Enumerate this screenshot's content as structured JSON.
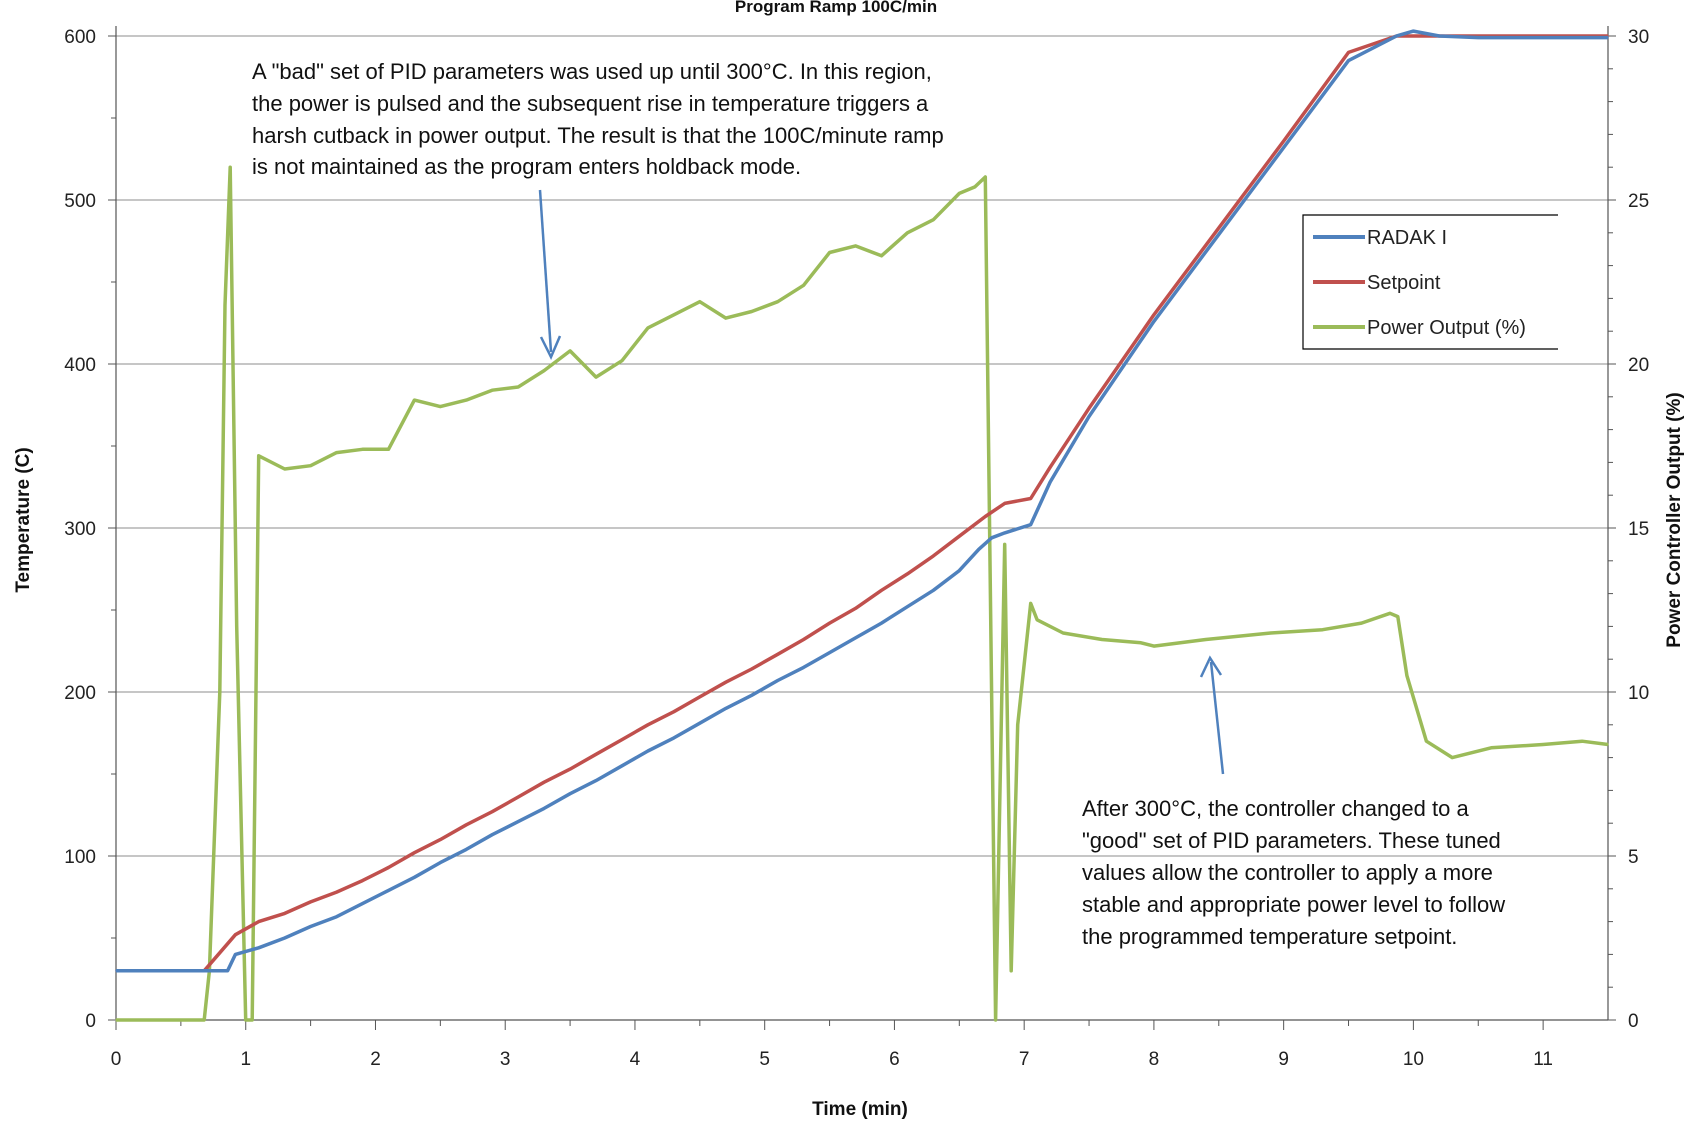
{
  "chart_data": {
    "type": "line",
    "title": "Program Ramp 100C/min",
    "xlabel": "Time (min)",
    "ylabel": "Temperature (C)",
    "y2label": "Power Controller Output (%)",
    "xlim": [
      0,
      11.5
    ],
    "ylim": [
      0,
      600
    ],
    "y2lim": [
      0,
      30
    ],
    "x_ticks": [
      "0",
      "1",
      "2",
      "3",
      "4",
      "5",
      "6",
      "7",
      "8",
      "9",
      "10",
      "11"
    ],
    "y_ticks": [
      "0",
      "100",
      "200",
      "300",
      "400",
      "500",
      "600"
    ],
    "y2_ticks": [
      "0",
      "5",
      "10",
      "15",
      "20",
      "25",
      "30"
    ],
    "grid": "horizontal major gridlines",
    "legend_position": "upper-right",
    "colors": {
      "RADAK I": "#4F81BD",
      "Setpoint": "#C0504D",
      "Power Output (%)": "#9BBB59"
    },
    "series": [
      {
        "name": "RADAK I",
        "axis": "left",
        "x": [
          0,
          0.86,
          0.92,
          1.1,
          1.3,
          1.5,
          1.7,
          1.9,
          2.1,
          2.3,
          2.5,
          2.7,
          2.9,
          3.1,
          3.3,
          3.5,
          3.7,
          3.9,
          4.1,
          4.3,
          4.5,
          4.7,
          4.9,
          5.1,
          5.3,
          5.5,
          5.7,
          5.9,
          6.1,
          6.3,
          6.5,
          6.65,
          6.75,
          6.85,
          7.05,
          7.2,
          7.5,
          8.0,
          8.5,
          9.0,
          9.5,
          9.87,
          10.0,
          10.2,
          10.5,
          11.0,
          11.5
        ],
        "y": [
          30,
          30,
          40,
          44,
          50,
          57,
          63,
          71,
          79,
          87,
          96,
          104,
          113,
          121,
          129,
          138,
          146,
          155,
          164,
          172,
          181,
          190,
          198,
          207,
          215,
          224,
          233,
          242,
          252,
          262,
          274,
          287,
          294,
          297,
          302,
          328,
          368,
          426,
          479,
          532,
          585,
          600,
          603,
          600,
          599,
          599,
          599
        ]
      },
      {
        "name": "Setpoint",
        "axis": "left",
        "x": [
          0,
          0.68,
          0.92,
          1.1,
          1.3,
          1.5,
          1.7,
          1.9,
          2.1,
          2.3,
          2.5,
          2.7,
          2.9,
          3.1,
          3.3,
          3.5,
          3.7,
          3.9,
          4.1,
          4.3,
          4.5,
          4.7,
          4.9,
          5.1,
          5.3,
          5.5,
          5.7,
          5.9,
          6.1,
          6.3,
          6.5,
          6.7,
          6.85,
          7.05,
          7.2,
          7.5,
          8.0,
          8.5,
          9.0,
          9.5,
          9.87,
          10.0,
          11.0,
          11.5
        ],
        "y": [
          30,
          30,
          52,
          60,
          65,
          72,
          78,
          85,
          93,
          102,
          110,
          119,
          127,
          136,
          145,
          153,
          162,
          171,
          180,
          188,
          197,
          206,
          214,
          223,
          232,
          242,
          251,
          262,
          272,
          283,
          295,
          307,
          315,
          318,
          337,
          373,
          430,
          483,
          536,
          590,
          600,
          600,
          600,
          600
        ]
      },
      {
        "name": "Power Output (%)",
        "axis": "right",
        "x": [
          0,
          0.68,
          0.72,
          0.8,
          0.84,
          0.88,
          0.93,
          1.0,
          1.05,
          1.1,
          1.3,
          1.5,
          1.7,
          1.9,
          2.1,
          2.3,
          2.5,
          2.7,
          2.9,
          3.1,
          3.3,
          3.5,
          3.7,
          3.9,
          4.1,
          4.3,
          4.5,
          4.7,
          4.9,
          5.1,
          5.3,
          5.5,
          5.7,
          5.9,
          6.1,
          6.3,
          6.5,
          6.62,
          6.7,
          6.78,
          6.85,
          6.9,
          6.95,
          7.05,
          7.1,
          7.3,
          7.6,
          7.9,
          8.0,
          8.4,
          8.9,
          9.3,
          9.6,
          9.82,
          9.88,
          9.95,
          10.1,
          10.3,
          10.6,
          11.0,
          11.3,
          11.5
        ],
        "y": [
          0,
          0,
          1.5,
          10,
          21.8,
          26,
          12,
          0,
          0,
          17.2,
          16.8,
          16.9,
          17.3,
          17.4,
          17.4,
          18.9,
          18.7,
          18.9,
          19.2,
          19.3,
          19.8,
          20.4,
          19.6,
          20.1,
          21.1,
          21.5,
          21.9,
          21.4,
          21.6,
          21.9,
          22.4,
          23.4,
          23.6,
          23.3,
          24.0,
          24.4,
          25.2,
          25.4,
          25.7,
          0,
          14.5,
          1.5,
          9.0,
          12.7,
          12.2,
          11.8,
          11.6,
          11.5,
          11.4,
          11.6,
          11.8,
          11.9,
          12.1,
          12.4,
          12.3,
          10.5,
          8.5,
          8.0,
          8.3,
          8.4,
          8.5,
          8.4
        ]
      }
    ],
    "annotations": [
      {
        "lines": [
          "A \"bad\" set of PID parameters was used up until 300°C. In this region,",
          "the power is pulsed and the subsequent rise in temperature triggers a",
          "harsh cutback in power output. The result is that the 100C/minute ramp",
          "is not maintained as the program enters holdback mode."
        ]
      },
      {
        "lines": [
          "After 300°C, the controller changed to a",
          "\"good\" set of PID parameters. These tuned",
          "values allow the controller to apply a more",
          "stable and appropriate power level to follow",
          "the programmed temperature setpoint."
        ]
      }
    ]
  }
}
